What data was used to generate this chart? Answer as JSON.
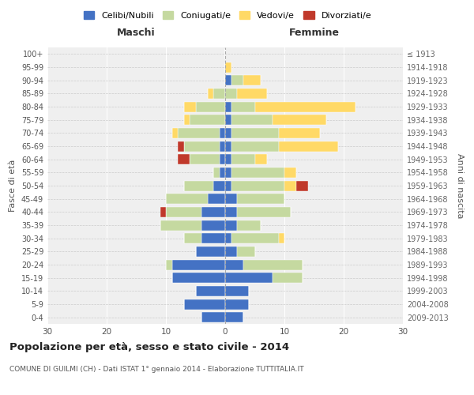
{
  "age_groups": [
    "0-4",
    "5-9",
    "10-14",
    "15-19",
    "20-24",
    "25-29",
    "30-34",
    "35-39",
    "40-44",
    "45-49",
    "50-54",
    "55-59",
    "60-64",
    "65-69",
    "70-74",
    "75-79",
    "80-84",
    "85-89",
    "90-94",
    "95-99",
    "100+"
  ],
  "birth_years": [
    "2009-2013",
    "2004-2008",
    "1999-2003",
    "1994-1998",
    "1989-1993",
    "1984-1988",
    "1979-1983",
    "1974-1978",
    "1969-1973",
    "1964-1968",
    "1959-1963",
    "1954-1958",
    "1949-1953",
    "1944-1948",
    "1939-1943",
    "1934-1938",
    "1929-1933",
    "1924-1928",
    "1919-1923",
    "1914-1918",
    "≤ 1913"
  ],
  "males": {
    "celibi": [
      4,
      7,
      5,
      9,
      9,
      5,
      4,
      4,
      4,
      3,
      2,
      1,
      1,
      1,
      1,
      0,
      0,
      0,
      0,
      0,
      0
    ],
    "coniugati": [
      0,
      0,
      0,
      0,
      1,
      0,
      3,
      7,
      6,
      7,
      5,
      1,
      5,
      6,
      7,
      6,
      5,
      2,
      0,
      0,
      0
    ],
    "vedovi": [
      0,
      0,
      0,
      0,
      0,
      0,
      0,
      0,
      0,
      0,
      0,
      0,
      0,
      0,
      1,
      1,
      2,
      1,
      0,
      0,
      0
    ],
    "divorziati": [
      0,
      0,
      0,
      0,
      0,
      0,
      0,
      0,
      1,
      0,
      0,
      0,
      2,
      1,
      0,
      0,
      0,
      0,
      0,
      0,
      0
    ]
  },
  "females": {
    "nubili": [
      3,
      4,
      4,
      8,
      3,
      2,
      1,
      2,
      2,
      2,
      1,
      1,
      1,
      1,
      1,
      1,
      1,
      0,
      1,
      0,
      0
    ],
    "coniugate": [
      0,
      0,
      0,
      5,
      10,
      3,
      8,
      4,
      9,
      8,
      9,
      9,
      4,
      8,
      8,
      7,
      4,
      2,
      2,
      0,
      0
    ],
    "vedove": [
      0,
      0,
      0,
      0,
      0,
      0,
      1,
      0,
      0,
      0,
      2,
      2,
      2,
      10,
      7,
      9,
      17,
      5,
      3,
      1,
      0
    ],
    "divorziate": [
      0,
      0,
      0,
      0,
      0,
      0,
      0,
      0,
      0,
      0,
      2,
      0,
      0,
      0,
      0,
      0,
      0,
      0,
      0,
      0,
      0
    ]
  },
  "colors": {
    "celibi": "#4472c4",
    "coniugati": "#c5d9a0",
    "vedovi": "#ffd966",
    "divorziati": "#c0392b"
  },
  "legend_labels": [
    "Celibi/Nubili",
    "Coniugati/e",
    "Vedovi/e",
    "Divorziati/e"
  ],
  "title": "Popolazione per età, sesso e stato civile - 2014",
  "subtitle": "COMUNE DI GUILMI (CH) - Dati ISTAT 1° gennaio 2014 - Elaborazione TUTTITALIA.IT",
  "xlabel_left": "Maschi",
  "xlabel_right": "Femmine",
  "ylabel_left": "Fasce di età",
  "ylabel_right": "Anni di nascita",
  "xlim": 30,
  "background_color": "#ffffff"
}
